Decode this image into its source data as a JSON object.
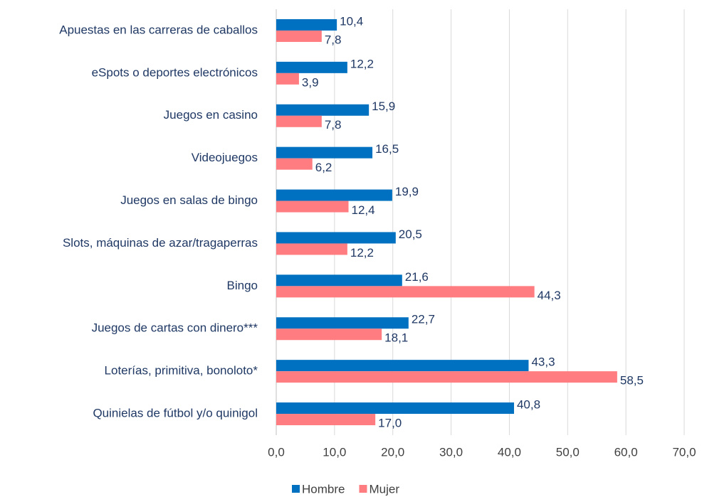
{
  "chart_data": {
    "type": "bar",
    "orientation": "horizontal",
    "categories": [
      "Apuestas en las carreras de caballos",
      "eSpots o deportes electrónicos",
      "Juegos en casino",
      "Videojuegos",
      "Juegos en salas de bingo",
      "Slots, máquinas de azar/tragaperras",
      "Bingo",
      "Juegos de cartas con dinero***",
      "Loterías, primitiva, bonoloto*",
      "Quinielas de fútbol y/o quinigol"
    ],
    "series": [
      {
        "name": "Hombre",
        "color": "#0070c0",
        "values": [
          10.4,
          12.2,
          15.9,
          16.5,
          19.9,
          20.5,
          21.6,
          22.7,
          43.3,
          40.8
        ],
        "value_labels": [
          "10,4",
          "12,2",
          "15,9",
          "16,5",
          "19,9",
          "20,5",
          "21,6",
          "22,7",
          "43,3",
          "40,8"
        ]
      },
      {
        "name": "Mujer",
        "color": "#ff7c80",
        "values": [
          7.8,
          3.9,
          7.8,
          6.2,
          12.4,
          12.2,
          44.3,
          18.1,
          58.5,
          17.0
        ],
        "value_labels": [
          "7,8",
          "3,9",
          "7,8",
          "6,2",
          "12,4",
          "12,2",
          "44,3",
          "18,1",
          "58,5",
          "17,0"
        ]
      }
    ],
    "xlim": [
      0,
      70
    ],
    "xticks": [
      {
        "value": 0,
        "label": "0,0"
      },
      {
        "value": 10,
        "label": "10,0"
      },
      {
        "value": 20,
        "label": "20,0"
      },
      {
        "value": 30,
        "label": "30,0"
      },
      {
        "value": 40,
        "label": "40,0"
      },
      {
        "value": 50,
        "label": "50,0"
      },
      {
        "value": 60,
        "label": "60,0"
      },
      {
        "value": 70,
        "label": "70,0"
      }
    ],
    "grid": true,
    "legend": "bottom"
  }
}
